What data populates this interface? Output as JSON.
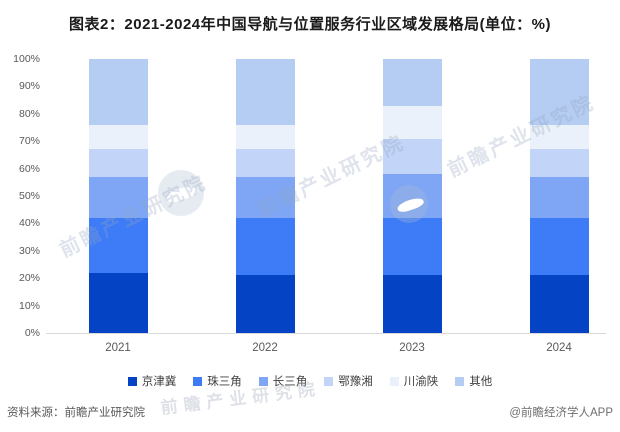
{
  "title": "图表2：2021-2024年中国导航与位置服务行业区域发展格局(单位：%)",
  "watermark": "前瞻产业研究院",
  "footer": {
    "source": "资料来源：前瞻产业研究院",
    "brand": "@前瞻经济学人APP"
  },
  "chart_data": {
    "type": "bar",
    "stacked": true,
    "percent_stacked": true,
    "title": "图表2：2021-2024年中国导航与位置服务行业区域发展格局(单位：%)",
    "xlabel": "",
    "ylabel": "",
    "ylim": [
      0,
      100
    ],
    "grid": false,
    "legend_position": "bottom",
    "yticks": [
      "0%",
      "10%",
      "20%",
      "30%",
      "40%",
      "50%",
      "60%",
      "70%",
      "80%",
      "90%",
      "100%"
    ],
    "categories": [
      "2021",
      "2022",
      "2023",
      "2024"
    ],
    "series": [
      {
        "name": "京津冀",
        "color": "#0443c4",
        "values": [
          22,
          21,
          21,
          21
        ]
      },
      {
        "name": "珠三角",
        "color": "#3e7cf7",
        "values": [
          20,
          21,
          21,
          21
        ]
      },
      {
        "name": "长三角",
        "color": "#7ea6f4",
        "values": [
          15,
          15,
          16,
          15
        ]
      },
      {
        "name": "鄂豫湘",
        "color": "#c2d4f8",
        "values": [
          10,
          10,
          13,
          10
        ]
      },
      {
        "name": "川渝陕",
        "color": "#ebf1fa",
        "values": [
          9,
          9,
          12,
          9
        ]
      },
      {
        "name": "其他",
        "color": "#b5cdf2",
        "values": [
          24,
          24,
          17,
          24
        ]
      }
    ]
  }
}
